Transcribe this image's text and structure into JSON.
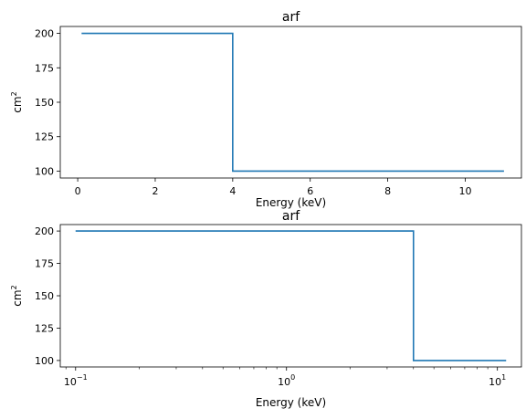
{
  "colors": {
    "series": "#1f77b4",
    "axes": "#000000",
    "background": "#ffffff"
  },
  "chart_data": [
    {
      "type": "line",
      "drawstyle": "steps",
      "title": "arf",
      "xlabel": "Energy (keV)",
      "ylabel": "cm",
      "ylabel_exponent": "2",
      "xscale": "linear",
      "xlim": [
        -0.45,
        11.45
      ],
      "ylim": [
        95,
        205
      ],
      "xticks": [
        0,
        2,
        4,
        6,
        8,
        10
      ],
      "xtick_labels": [
        "0",
        "2",
        "4",
        "6",
        "8",
        "10"
      ],
      "yticks": [
        100,
        125,
        150,
        175,
        200
      ],
      "ytick_labels": [
        "100",
        "125",
        "150",
        "175",
        "200"
      ],
      "grid": false,
      "series": [
        {
          "x": [
            0.1,
            4.0,
            4.0,
            11.0
          ],
          "y": [
            200,
            200,
            100,
            100
          ]
        }
      ]
    },
    {
      "type": "line",
      "drawstyle": "steps",
      "title": "arf",
      "xlabel": "Energy (keV)",
      "ylabel": "cm",
      "ylabel_exponent": "2",
      "xscale": "log",
      "xlim": [
        0.0846,
        13.0
      ],
      "ylim": [
        95,
        205
      ],
      "xticks": [
        0.1,
        1,
        10
      ],
      "xtick_labels": [
        {
          "base": "10",
          "exp": "−1"
        },
        {
          "base": "10",
          "exp": "0"
        },
        {
          "base": "10",
          "exp": "1"
        }
      ],
      "yticks": [
        100,
        125,
        150,
        175,
        200
      ],
      "ytick_labels": [
        "100",
        "125",
        "150",
        "175",
        "200"
      ],
      "grid": false,
      "series": [
        {
          "x": [
            0.1,
            4.0,
            4.0,
            11.0
          ],
          "y": [
            200,
            200,
            100,
            100
          ]
        }
      ]
    }
  ]
}
